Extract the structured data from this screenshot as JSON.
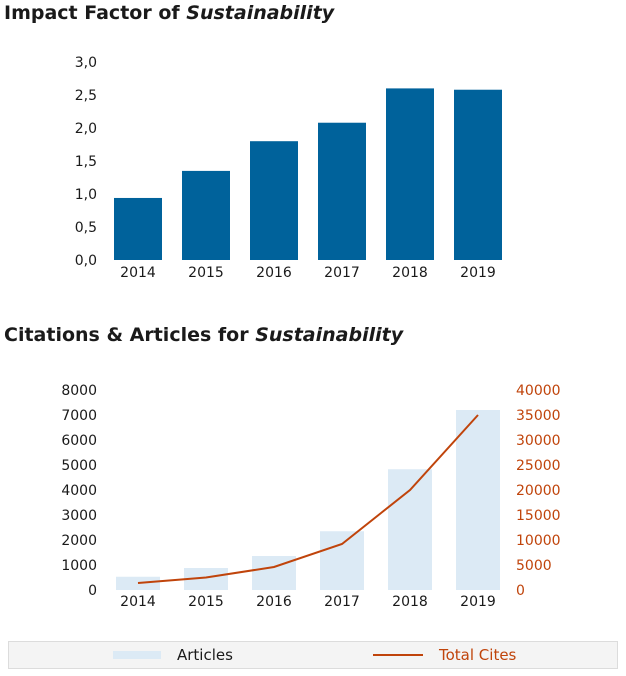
{
  "charts": [
    {
      "title_main": "Impact Factor of ",
      "title_italic": "Sustainability"
    },
    {
      "title_main": "Citations & Articles for ",
      "title_italic": "Sustainability",
      "legend": {
        "bar_label": "Articles",
        "line_label": "Total Cites"
      }
    }
  ],
  "chart_data": [
    {
      "type": "bar",
      "categories": [
        "2014",
        "2015",
        "2016",
        "2017",
        "2018",
        "2019"
      ],
      "values": [
        0.94,
        1.35,
        1.8,
        2.08,
        2.6,
        2.58
      ],
      "title": "Impact Factor of Sustainability",
      "ylim": [
        0,
        3.0
      ],
      "yticks": [
        "0,0",
        "0,5",
        "1,0",
        "1,5",
        "2,0",
        "2,5",
        "3,0"
      ],
      "grid": false,
      "colors": {
        "bar": "#00629b"
      }
    },
    {
      "type": "bar",
      "categories": [
        "2014",
        "2015",
        "2016",
        "2017",
        "2018",
        "2019"
      ],
      "series": [
        {
          "name": "Articles",
          "type": "bar",
          "axis": "left",
          "values": [
            530,
            880,
            1360,
            2350,
            4830,
            7200
          ]
        },
        {
          "name": "Total Cites",
          "type": "line",
          "axis": "right",
          "values": [
            1400,
            2500,
            4600,
            9200,
            20000,
            35000
          ]
        }
      ],
      "title": "Citations & Articles for Sustainability",
      "ylim": [
        0,
        8000
      ],
      "yticks": [
        "0",
        "1000",
        "2000",
        "3000",
        "4000",
        "5000",
        "6000",
        "7000",
        "8000"
      ],
      "y2lim": [
        0,
        40000
      ],
      "y2ticks": [
        "0",
        "5000",
        "10000",
        "15000",
        "20000",
        "25000",
        "30000",
        "35000",
        "40000"
      ],
      "grid": false,
      "legend_position": "bottom",
      "colors": {
        "bar": "#dceaf5",
        "line": "#c0440b",
        "right_axis": "#c0440b"
      }
    }
  ]
}
